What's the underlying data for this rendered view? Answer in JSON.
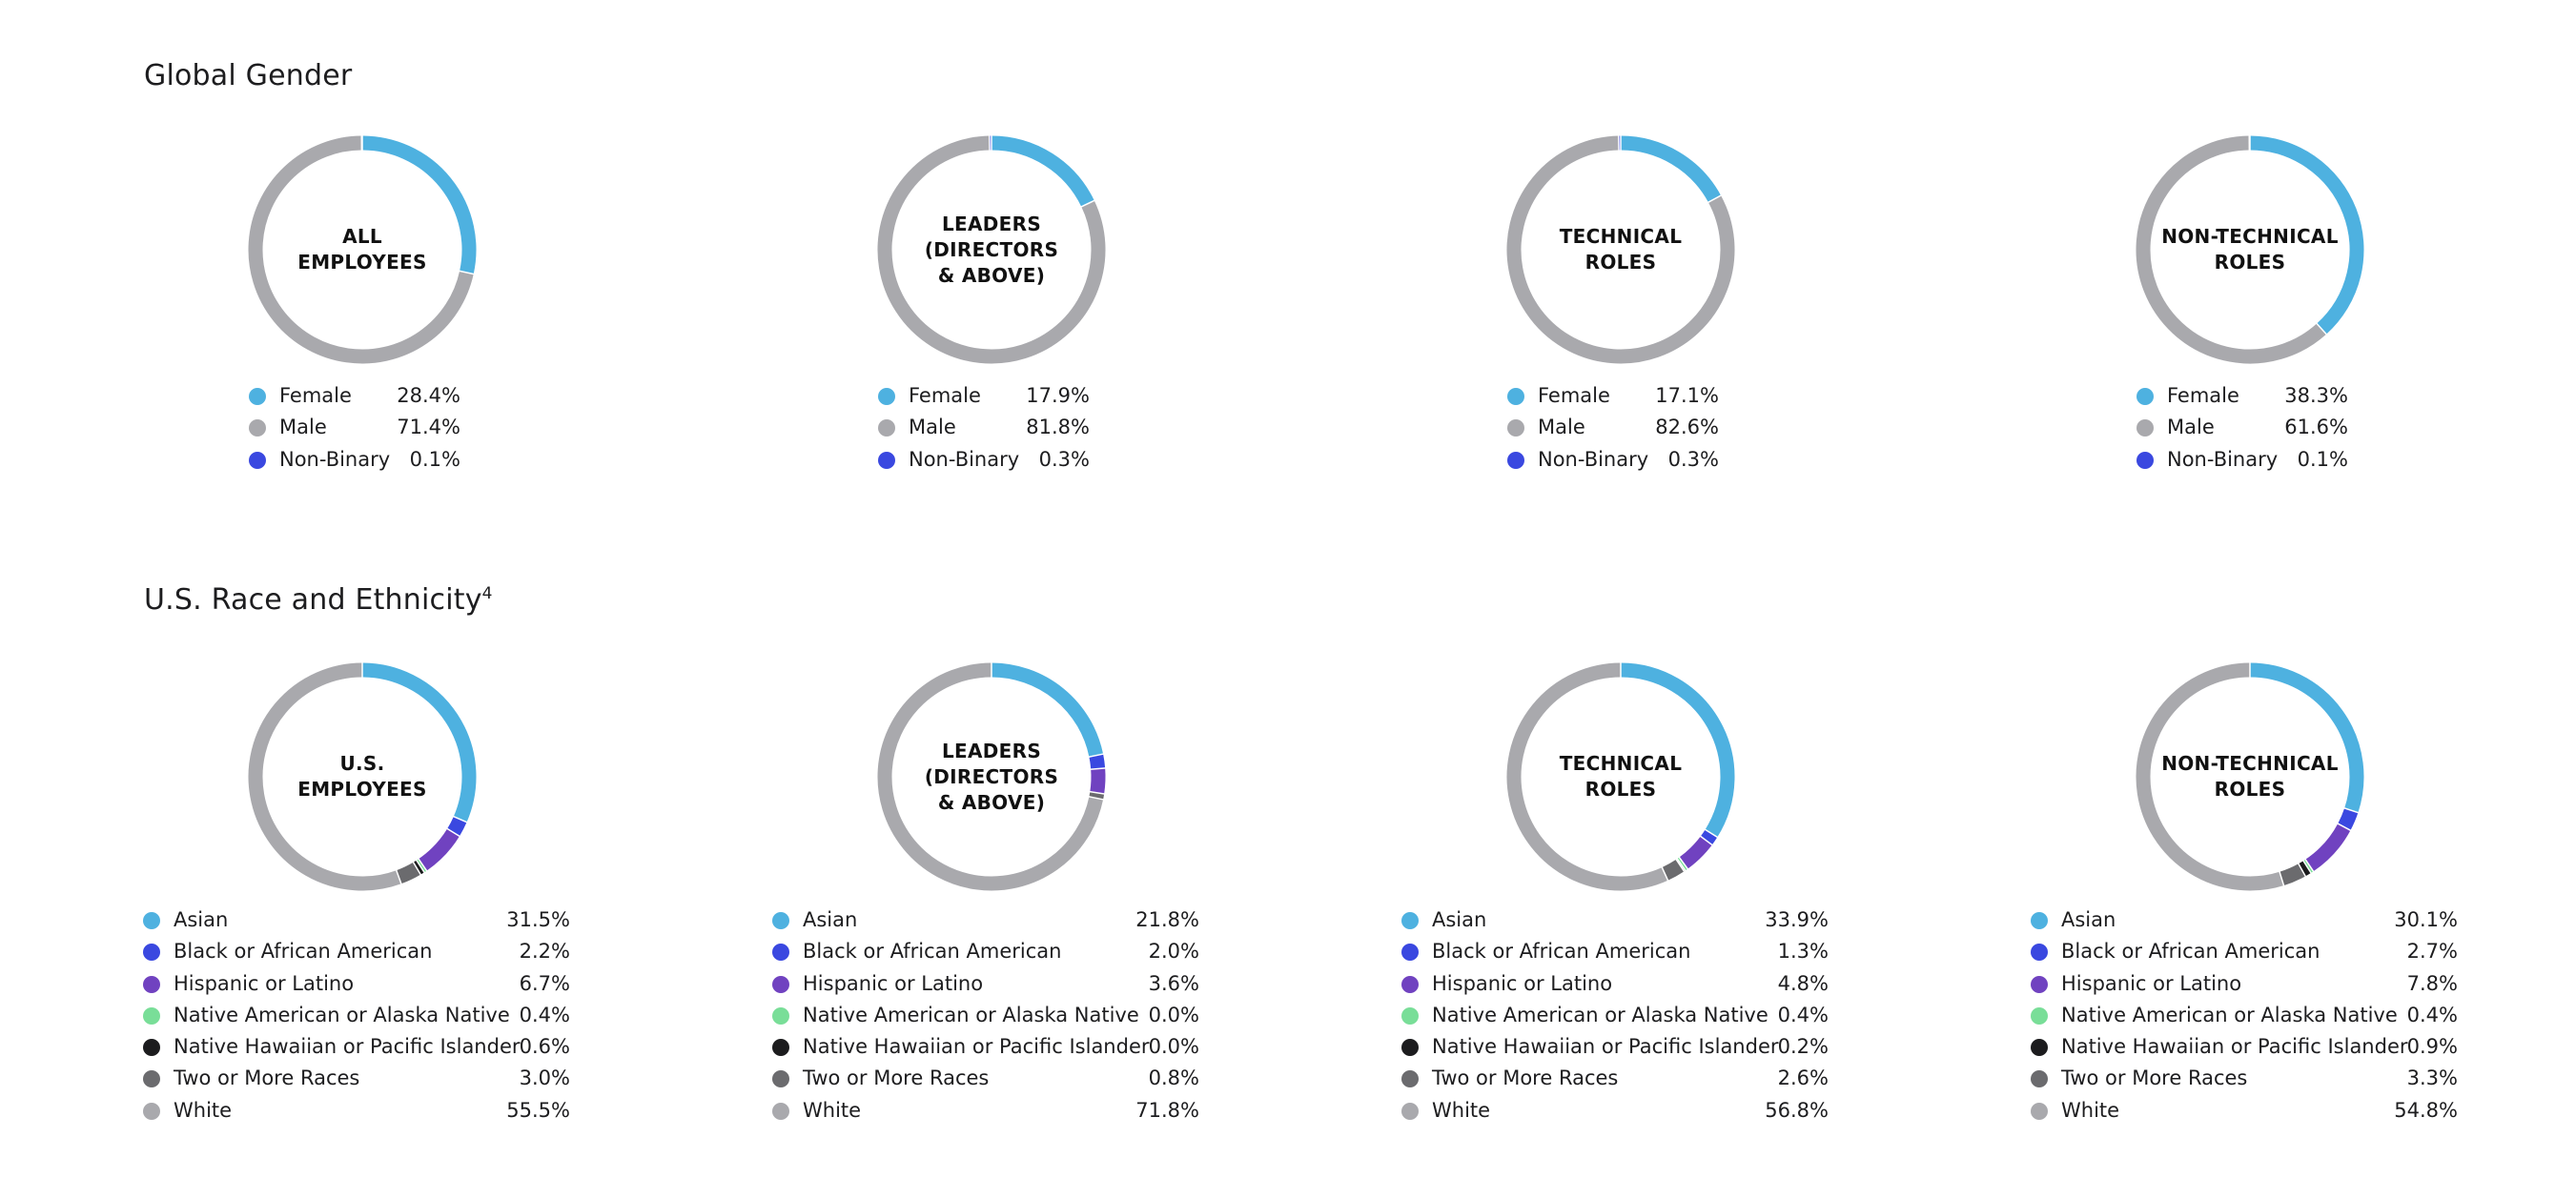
{
  "sections": {
    "gender": {
      "title": "Global Gender"
    },
    "race": {
      "title": "U.S. Race and Ethnicity",
      "footnote": "4"
    }
  },
  "colors": {
    "Female": "#4eb1e0",
    "Male": "#a9a9ad",
    "Non-Binary": "#3a48e0",
    "Asian": "#4eb1e0",
    "Black or African American": "#3a48e0",
    "Hispanic or Latino": "#7042c0",
    "Native American or Alaska Native": "#79de98",
    "Native Hawaiian or Pacific Islander": "#1c1c1e",
    "Two or More Races": "#6b6b6e",
    "White": "#a9a9ad"
  },
  "chart_data": [
    {
      "type": "pie",
      "group": "gender",
      "title": "ALL\nEMPLOYEES",
      "categories": [
        "Female",
        "Male",
        "Non-Binary"
      ],
      "values": [
        28.4,
        71.4,
        0.1
      ],
      "labels": [
        "28.4%",
        "71.4%",
        "0.1%"
      ]
    },
    {
      "type": "pie",
      "group": "gender",
      "title": "LEADERS\n(DIRECTORS\n& ABOVE)",
      "categories": [
        "Female",
        "Male",
        "Non-Binary"
      ],
      "values": [
        17.9,
        81.8,
        0.3
      ],
      "labels": [
        "17.9%",
        "81.8%",
        "0.3%"
      ]
    },
    {
      "type": "pie",
      "group": "gender",
      "title": "TECHNICAL\nROLES",
      "categories": [
        "Female",
        "Male",
        "Non-Binary"
      ],
      "values": [
        17.1,
        82.6,
        0.3
      ],
      "labels": [
        "17.1%",
        "82.6%",
        "0.3%"
      ]
    },
    {
      "type": "pie",
      "group": "gender",
      "title": "NON-TECHNICAL\nROLES",
      "categories": [
        "Female",
        "Male",
        "Non-Binary"
      ],
      "values": [
        38.3,
        61.6,
        0.1
      ],
      "labels": [
        "38.3%",
        "61.6%",
        "0.1%"
      ]
    },
    {
      "type": "pie",
      "group": "race",
      "title": "U.S.\nEMPLOYEES",
      "categories": [
        "Asian",
        "Black or African American",
        "Hispanic or Latino",
        "Native American or Alaska Native",
        "Native Hawaiian or Pacific Islander",
        "Two or More Races",
        "White"
      ],
      "values": [
        31.5,
        2.2,
        6.7,
        0.4,
        0.6,
        3.0,
        55.5
      ],
      "labels": [
        "31.5%",
        "2.2%",
        "6.7%",
        "0.4%",
        "0.6%",
        "3.0%",
        "55.5%"
      ]
    },
    {
      "type": "pie",
      "group": "race",
      "title": "LEADERS\n(DIRECTORS\n& ABOVE)",
      "categories": [
        "Asian",
        "Black or African American",
        "Hispanic or Latino",
        "Native American or Alaska Native",
        "Native Hawaiian or Pacific Islander",
        "Two or More Races",
        "White"
      ],
      "values": [
        21.8,
        2.0,
        3.6,
        0.0,
        0.0,
        0.8,
        71.8
      ],
      "labels": [
        "21.8%",
        "2.0%",
        "3.6%",
        "0.0%",
        "0.0%",
        "0.8%",
        "71.8%"
      ]
    },
    {
      "type": "pie",
      "group": "race",
      "title": "TECHNICAL\nROLES",
      "categories": [
        "Asian",
        "Black or African American",
        "Hispanic or Latino",
        "Native American or Alaska Native",
        "Native Hawaiian or Pacific Islander",
        "Two or More Races",
        "White"
      ],
      "values": [
        33.9,
        1.3,
        4.8,
        0.4,
        0.2,
        2.6,
        56.8
      ],
      "labels": [
        "33.9%",
        "1.3%",
        "4.8%",
        "0.4%",
        "0.2%",
        "2.6%",
        "56.8%"
      ]
    },
    {
      "type": "pie",
      "group": "race",
      "title": "NON-TECHNICAL\nROLES",
      "categories": [
        "Asian",
        "Black or African American",
        "Hispanic or Latino",
        "Native American or Alaska Native",
        "Native Hawaiian or Pacific Islander",
        "Two or More Races",
        "White"
      ],
      "values": [
        30.1,
        2.7,
        7.8,
        0.4,
        0.9,
        3.3,
        54.8
      ],
      "labels": [
        "30.1%",
        "2.7%",
        "7.8%",
        "0.4%",
        "0.9%",
        "3.3%",
        "54.8%"
      ]
    }
  ]
}
